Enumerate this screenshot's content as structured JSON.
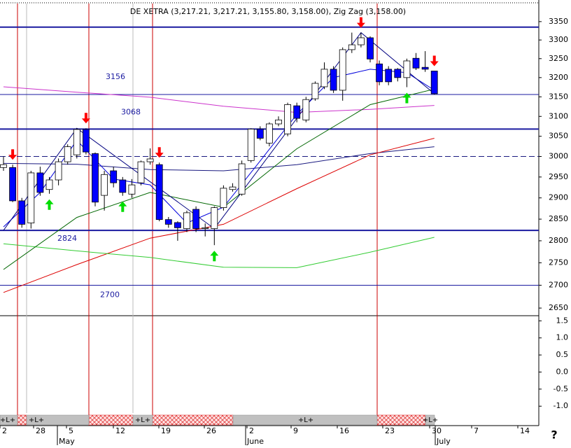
{
  "header": "DE XETRA (3,217.21, 3,217.21, 3,155.80, 3,158.00), Zig Zag (3,158.00)",
  "chart_data": {
    "type": "candlestick",
    "scale": "log",
    "ylim": [
      2635,
      3400
    ],
    "yticks": [
      3350,
      3300,
      3250,
      3200,
      3150,
      3100,
      3050,
      3000,
      2950,
      2900,
      2850,
      2800,
      2750,
      2700,
      2650
    ],
    "up_color": "#ffffff",
    "down_color": "#0000ff",
    "categories": [
      null,
      null,
      null,
      null,
      null,
      null,
      null,
      null,
      null,
      null,
      null,
      null,
      null,
      null,
      null,
      null,
      null,
      null,
      null,
      null,
      null,
      null,
      null,
      null,
      null,
      null,
      null,
      null,
      null,
      null,
      null,
      null,
      null,
      null,
      null,
      null,
      null,
      null,
      null,
      null,
      null,
      null,
      null,
      null,
      null,
      null,
      null,
      null
    ],
    "open": [
      2973,
      2973,
      2893,
      2841,
      2960,
      2920,
      2943,
      2987,
      3004,
      3067,
      3007,
      2906,
      2965,
      2943,
      2909,
      2936,
      2987,
      2980,
      2849,
      2842,
      2828,
      2873,
      2828,
      2828,
      2877,
      2920,
      2909,
      2990,
      3068,
      3033,
      3081,
      3056,
      3127,
      3091,
      3145,
      3176,
      3222,
      3167,
      3274,
      3287,
      3306,
      3236,
      3222,
      3222,
      3200,
      3251,
      3227,
      3217.21
    ],
    "high": [
      3000,
      2980,
      2900,
      2965,
      2975,
      2950,
      2995,
      3030,
      3070,
      3070,
      3010,
      2965,
      2975,
      2950,
      2945,
      2990,
      3020,
      2985,
      2855,
      2845,
      2870,
      2880,
      2840,
      2880,
      2930,
      2935,
      2990,
      3070,
      3075,
      3085,
      3100,
      3135,
      3135,
      3150,
      3190,
      3240,
      3230,
      3280,
      3320,
      3320,
      3310,
      3245,
      3230,
      3225,
      3250,
      3265,
      3270,
      3217.21
    ],
    "low": [
      2965,
      2890,
      2830,
      2828,
      2905,
      2910,
      2930,
      2980,
      2995,
      3005,
      2880,
      2870,
      2925,
      2905,
      2900,
      2930,
      2980,
      2845,
      2830,
      2800,
      2820,
      2820,
      2810,
      2790,
      2870,
      2915,
      2905,
      2985,
      3040,
      3025,
      3075,
      3050,
      3085,
      3085,
      3140,
      3170,
      3160,
      3140,
      3265,
      3280,
      3240,
      3180,
      3180,
      3190,
      3175,
      3220,
      3215,
      3155.8
    ],
    "close": [
      2980,
      2893,
      2838,
      2960,
      2913,
      2943,
      2987,
      3024,
      3067,
      3011,
      2890,
      2956,
      2936,
      2913,
      2931,
      2987,
      2994,
      2849,
      2838,
      2830,
      2865,
      2828,
      2830,
      2877,
      2923,
      2926,
      2982,
      3068,
      3045,
      3081,
      3091,
      3130,
      3095,
      3143,
      3185,
      3222,
      3167,
      3274,
      3287,
      3306,
      3249,
      3189,
      3189,
      3200,
      3244,
      3225,
      3222,
      3158
    ],
    "lines": [
      {
        "color": "#cc33cc",
        "x": [
          0,
          8,
          16,
          24,
          32,
          40,
          47
        ],
        "values": [
          3176,
          3162,
          3149,
          3126,
          3110,
          3118,
          3128
        ]
      },
      {
        "color": "#1a1a80",
        "x": [
          0,
          8,
          16,
          24,
          32,
          40,
          47
        ],
        "values": [
          2983,
          2981,
          2968,
          2965,
          2980,
          3007,
          3024
        ]
      },
      {
        "color": "#dd0000",
        "x": [
          0,
          8,
          16,
          24,
          32,
          40,
          47
        ],
        "values": [
          2684,
          2746,
          2806,
          2838,
          2922,
          3004,
          3045
        ]
      },
      {
        "color": "#33cc33",
        "x": [
          0,
          8,
          16,
          24,
          32,
          40,
          47
        ],
        "values": [
          2793,
          2777,
          2762,
          2740,
          2739,
          2774,
          2808
        ]
      },
      {
        "color": "#006600",
        "x": [
          0,
          8,
          16,
          24,
          32,
          40,
          47
        ],
        "values": [
          2735,
          2854,
          2913,
          2878,
          3019,
          3130,
          3170
        ]
      },
      {
        "color": "#0000dd",
        "x": [
          0,
          4,
          8,
          12,
          16,
          20,
          24,
          28,
          32,
          36,
          40,
          44,
          47
        ],
        "values": [
          2832,
          2913,
          3040,
          2945,
          2931,
          2841,
          2878,
          2989,
          3105,
          3200,
          3222,
          3213,
          3167
        ]
      },
      {
        "color": "#000080",
        "x": [
          0,
          8,
          23,
          39,
          47
        ],
        "values": [
          2824,
          3070,
          2828,
          3320,
          3158
        ]
      }
    ],
    "labeled_levels": [
      {
        "value": 3156,
        "style": "thin"
      },
      {
        "value": 3068,
        "style": "thick"
      },
      {
        "value": 2824,
        "style": "thick"
      },
      {
        "value": 2700,
        "style": "thin"
      }
    ],
    "unlabeled_levels": [
      {
        "value": 3335,
        "style": "thick"
      },
      {
        "value": 3000,
        "style": "dashed"
      }
    ],
    "sell_signals": [
      1,
      9,
      17,
      39,
      47
    ],
    "buy_signals": [
      5,
      13,
      23,
      44
    ]
  },
  "lower_panel": {
    "ylim": [
      -1.2,
      1.63
    ],
    "yticks": [
      {
        "value": 1.5,
        "label": "1.5"
      },
      {
        "value": 1.0,
        "label": "1.0"
      },
      {
        "value": 0.5,
        "label": "0.5"
      },
      {
        "value": 0.0,
        "label": "0.0"
      },
      {
        "value": -0.5,
        "label": "-0.5"
      },
      {
        "value": -1.0,
        "label": "-1.0"
      }
    ],
    "flags": [
      "+L+",
      "+L+",
      "+L+",
      "+L+",
      "+L+"
    ]
  },
  "x_axis": {
    "day_labels": [
      "2",
      "28",
      "5",
      "12",
      "19",
      "26",
      "2",
      "9",
      "16",
      "23",
      "30",
      "7",
      "14"
    ],
    "month_labels": [
      "May",
      "June",
      "July"
    ]
  },
  "help": "?"
}
